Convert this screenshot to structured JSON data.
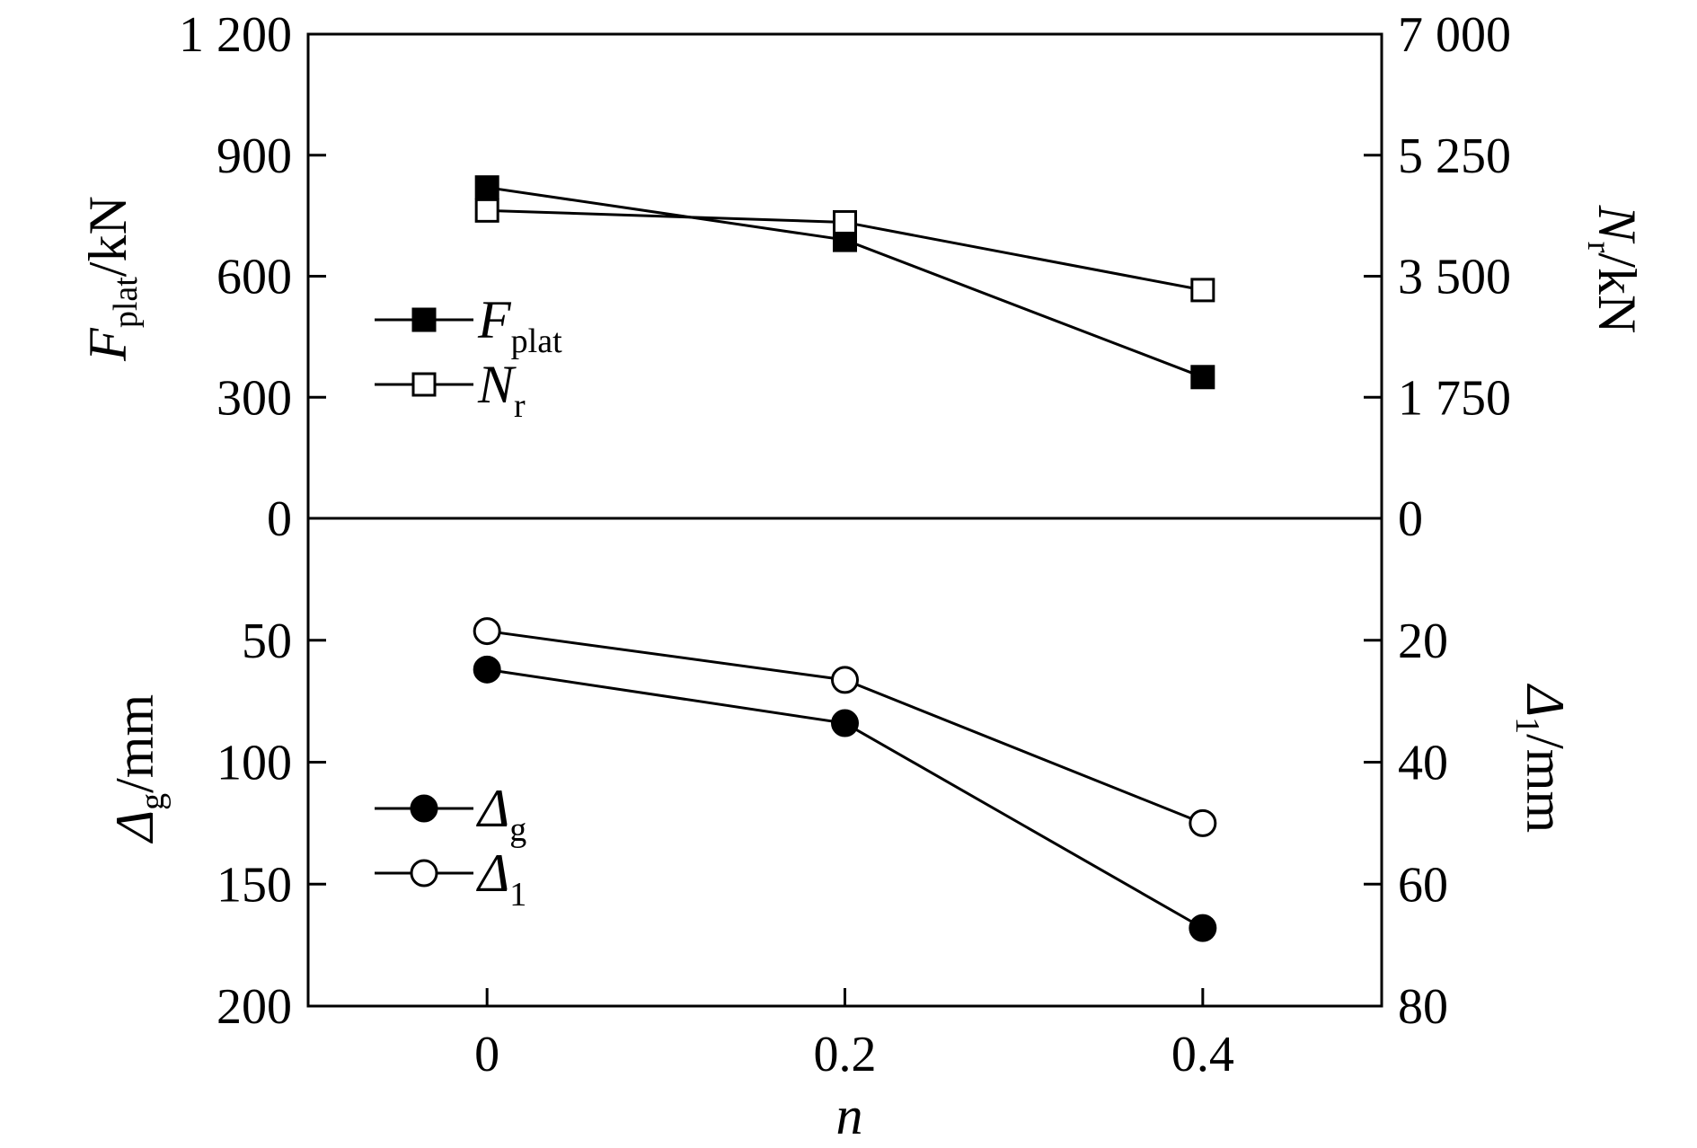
{
  "chart_data": [
    {
      "panel": "top",
      "type": "line",
      "x": [
        0,
        0.2,
        0.4
      ],
      "xlim": [
        -0.1,
        0.5
      ],
      "left_axis": {
        "label": "F_plat/kN",
        "label_parts": {
          "main": "F",
          "sub": "plat",
          "unit": "/kN"
        },
        "ylim": [
          0,
          1200
        ],
        "ticks": [
          0,
          300,
          600,
          900,
          1200
        ],
        "tick_labels": [
          "0",
          "300",
          "600",
          "900",
          "1 200"
        ]
      },
      "right_axis": {
        "label": "N_r/kN",
        "label_parts": {
          "main": "N",
          "sub": "r",
          "unit": "/kN"
        },
        "ylim": [
          0,
          7000
        ],
        "ticks": [
          0,
          1750,
          3500,
          5250,
          7000
        ],
        "tick_labels": [
          "0",
          "1 750",
          "3 500",
          "5 250",
          "7 000"
        ]
      },
      "series": [
        {
          "name": "F_plat",
          "name_main": "F",
          "name_sub": "plat",
          "axis": "left",
          "marker": "square-filled",
          "values": [
            820,
            690,
            350
          ]
        },
        {
          "name": "N_r",
          "name_main": "N",
          "name_sub": "r",
          "axis": "right",
          "marker": "square-open",
          "values": [
            4450,
            4280,
            3300
          ]
        }
      ],
      "legend_position": "middle-left"
    },
    {
      "panel": "bottom",
      "type": "line",
      "x": [
        0,
        0.2,
        0.4
      ],
      "xlim": [
        -0.1,
        0.5
      ],
      "left_axis": {
        "label": "Δg/mm",
        "label_parts": {
          "main": "Δ",
          "sub": "g",
          "unit": "/mm"
        },
        "ylim": [
          0,
          200
        ],
        "inverted": true,
        "ticks": [
          50,
          100,
          150,
          200
        ],
        "tick_labels": [
          "50",
          "100",
          "150",
          "200"
        ]
      },
      "right_axis": {
        "label": "Δ1/mm",
        "label_parts": {
          "main": "Δ",
          "sub": "1",
          "unit": "/mm"
        },
        "ylim": [
          0,
          80
        ],
        "inverted": true,
        "ticks": [
          20,
          40,
          60,
          80
        ],
        "tick_labels": [
          "20",
          "40",
          "60",
          "80"
        ]
      },
      "series": [
        {
          "name": "Δg",
          "name_main": "Δ",
          "name_sub": "g",
          "axis": "left",
          "marker": "circle-filled",
          "values": [
            62,
            84,
            168
          ]
        },
        {
          "name": "Δ1",
          "name_main": "Δ",
          "name_sub": "1",
          "axis": "right",
          "marker": "circle-open",
          "values": [
            18.5,
            26.5,
            50
          ]
        }
      ],
      "legend_position": "bottom-left"
    }
  ],
  "x_axis": {
    "label": "n",
    "ticks": [
      0,
      0.2,
      0.4
    ],
    "tick_labels": [
      "0",
      "0.2",
      "0.4"
    ]
  }
}
